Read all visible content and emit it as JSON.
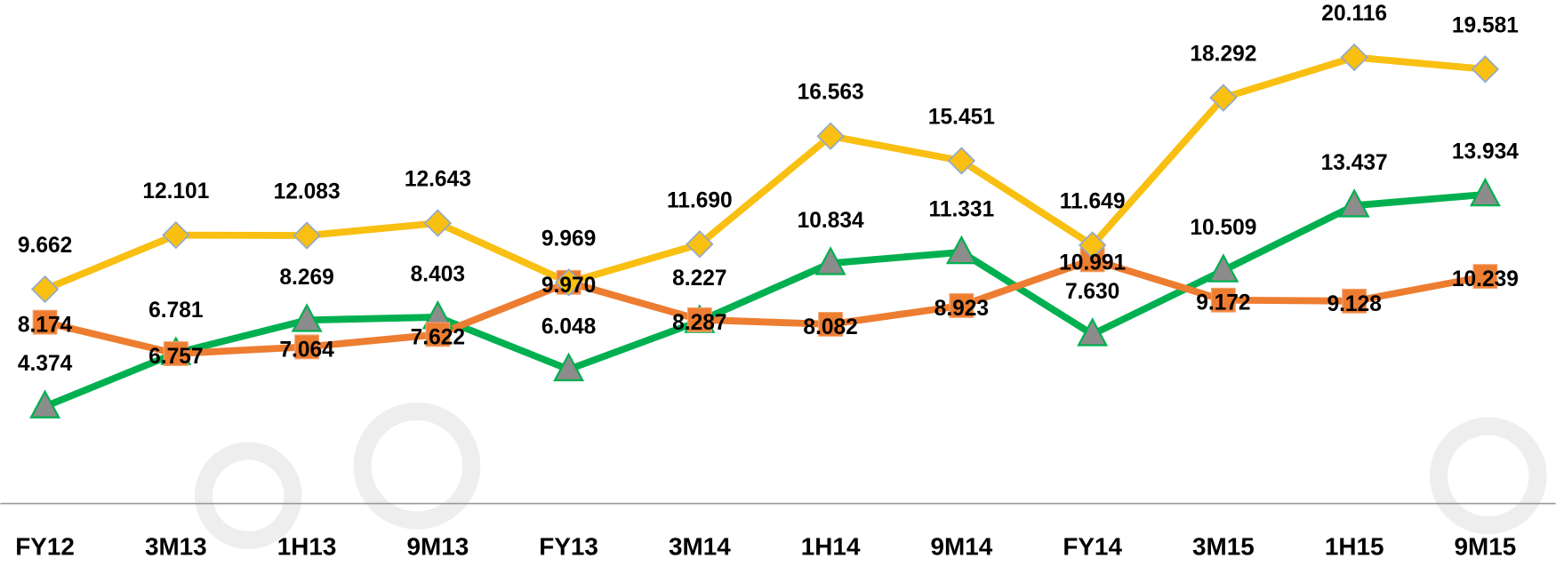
{
  "chart_data": {
    "type": "line",
    "categories": [
      "FY12",
      "3M13",
      "1H13",
      "9M13",
      "FY13",
      "3M14",
      "1H14",
      "9M14",
      "FY14",
      "3M15",
      "1H15",
      "9M15"
    ],
    "series": [
      {
        "color": "#f9bf11",
        "marker": "diamond",
        "values": [
          9.662,
          12.101,
          12.083,
          12.643,
          9.969,
          11.69,
          16.563,
          15.451,
          11.649,
          18.292,
          20.116,
          19.581
        ],
        "value_labels": [
          "9.662",
          "12.101",
          "12.083",
          "12.643",
          "9.969",
          "11.690",
          "16.563",
          "15.451",
          "11.649",
          "18.292",
          "20.116",
          "19.581"
        ]
      },
      {
        "color": "#ed7d31",
        "marker": "square",
        "values": [
          8.174,
          6.757,
          7.064,
          7.622,
          9.97,
          8.287,
          8.082,
          8.923,
          10.991,
          9.172,
          9.128,
          10.239
        ],
        "value_labels": [
          "8.174",
          "6.757",
          "7.064",
          "7.622",
          "9.970",
          "8.287",
          "8.082",
          "8.923",
          "10.991",
          "9.172",
          "9.128",
          "10.239"
        ]
      },
      {
        "color": "#00b050",
        "marker": "triangle",
        "values": [
          4.374,
          6.781,
          8.269,
          8.403,
          6.048,
          8.227,
          10.834,
          11.331,
          7.63,
          10.509,
          13.437,
          13.934
        ],
        "value_labels": [
          "4.374",
          "6.781",
          "8.269",
          "8.403",
          "6.048",
          "8.227",
          "10.834",
          "11.331",
          "7.630",
          "10.509",
          "13.437",
          "13.934"
        ]
      }
    ],
    "ylim": [
      0,
      22.7
    ]
  }
}
